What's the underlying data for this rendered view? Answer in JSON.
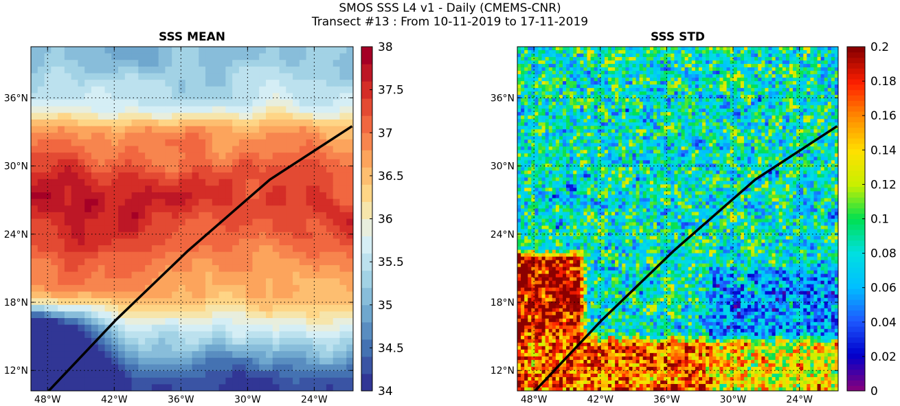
{
  "figure": {
    "title_line1": "SMOS SSS L4 v1 - Daily (CMEMS-CNR)",
    "title_line2": "Transect #13 : From 10-11-2019 to 17-11-2019"
  },
  "colors": {
    "transect": "#000000",
    "mean_colormap": [
      "#313695",
      "#4575b4",
      "#74add1",
      "#abd9e9",
      "#e0f3f8",
      "#fee090",
      "#fdae61",
      "#f46d43",
      "#d73027",
      "#a50026"
    ],
    "std_colormap": [
      "#800080",
      "#0000cd",
      "#1e5aff",
      "#00bfff",
      "#00e0e0",
      "#00e050",
      "#c8f000",
      "#ffe000",
      "#ff8c00",
      "#ff2000",
      "#8b0000"
    ]
  },
  "chart_data": [
    {
      "type": "heatmap",
      "title": "SSS MEAN",
      "xlabel": "",
      "ylabel": "",
      "x_ticks": [
        -48,
        -42,
        -36,
        -30,
        -24
      ],
      "x_tick_labels": [
        "48°W",
        "42°W",
        "36°W",
        "30°W",
        "24°W"
      ],
      "y_ticks": [
        12,
        18,
        24,
        30,
        36
      ],
      "y_tick_labels": [
        "12°N",
        "18°N",
        "24°N",
        "30°N",
        "36°N"
      ],
      "xlim": [
        -49.5,
        -20.5
      ],
      "ylim": [
        10.2,
        40.5
      ],
      "grid": true,
      "colorbar": {
        "range": [
          34,
          38
        ],
        "ticks": [
          34,
          34.5,
          35,
          35.5,
          36,
          36.5,
          37,
          37.5,
          38
        ],
        "tick_labels": [
          "34",
          "34.5",
          "35",
          "35.5",
          "36",
          "36.5",
          "37",
          "37.5",
          "38"
        ],
        "levels": 20
      },
      "transect": {
        "lon": [
          -47.9,
          -41.9,
          -35.4,
          -28.0,
          -20.6
        ],
        "lat": [
          10.2,
          16.4,
          22.5,
          28.8,
          33.5
        ]
      }
    },
    {
      "type": "heatmap",
      "title": "SSS STD",
      "xlabel": "",
      "ylabel": "",
      "x_ticks": [
        -48,
        -42,
        -36,
        -30,
        -24
      ],
      "x_tick_labels": [
        "48°W",
        "42°W",
        "36°W",
        "30°W",
        "24°W"
      ],
      "y_ticks": [
        12,
        18,
        24,
        30,
        36
      ],
      "y_tick_labels": [
        "12°N",
        "18°N",
        "24°N",
        "30°N",
        "36°N"
      ],
      "xlim": [
        -49.5,
        -20.5
      ],
      "ylim": [
        10.2,
        40.5
      ],
      "grid": true,
      "colorbar": {
        "range": [
          0,
          0.2
        ],
        "ticks": [
          0,
          0.02,
          0.04,
          0.06,
          0.08,
          0.1,
          0.12,
          0.14,
          0.16,
          0.18,
          0.2
        ],
        "tick_labels": [
          "0",
          "0.02",
          "0.04",
          "0.06",
          "0.08",
          "0.1",
          "0.12",
          "0.14",
          "0.16",
          "0.18",
          "0.2"
        ],
        "levels": 64
      },
      "transect": {
        "lon": [
          -47.9,
          -41.9,
          -35.4,
          -28.0,
          -20.6
        ],
        "lat": [
          10.2,
          16.4,
          22.5,
          28.8,
          33.5
        ]
      }
    }
  ]
}
